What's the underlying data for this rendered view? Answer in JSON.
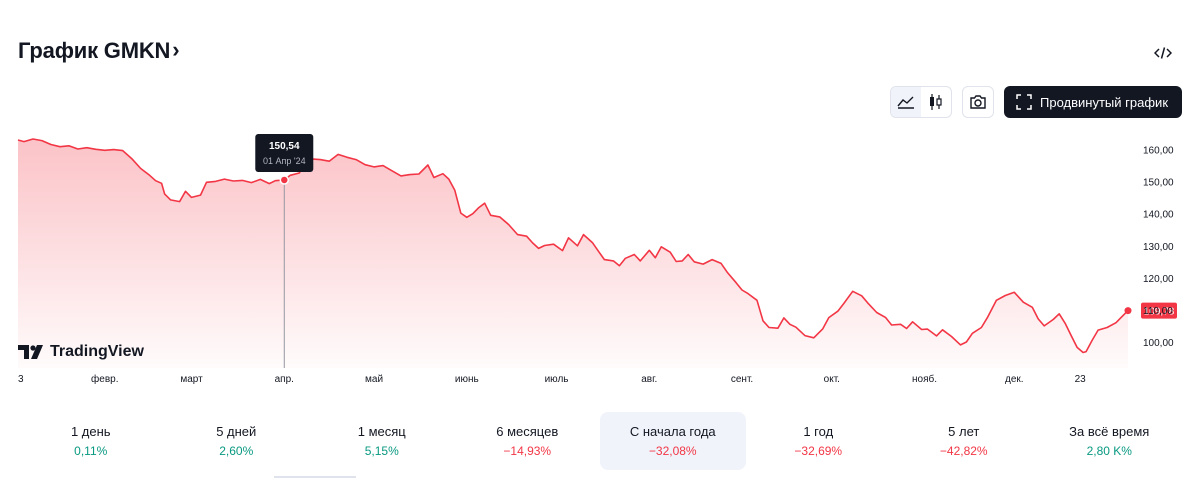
{
  "header": {
    "title": "График GMKN",
    "chevron": "›"
  },
  "toolbar": {
    "advanced_label": "Продвинутый график"
  },
  "logo": {
    "text": "TradingView"
  },
  "tooltip": {
    "value": "150,54",
    "date": "01 Апр '24"
  },
  "last_price_label": "109,78",
  "colors": {
    "line": "#f23645",
    "positive": "#089981",
    "negative": "#f23645",
    "dark": "#131722"
  },
  "chart_data": {
    "type": "area",
    "title": "График GMKN",
    "ylim": [
      95,
      163
    ],
    "yticks": [
      100,
      110,
      120,
      130,
      140,
      150,
      160
    ],
    "y_tick_labels": [
      "100,00",
      "110,00",
      "120,00",
      "130,00",
      "140,00",
      "150,00",
      "160,00"
    ],
    "x_ticks": [
      {
        "label": "3",
        "day": 3
      },
      {
        "label": "февр.",
        "day": 32
      },
      {
        "label": "март",
        "day": 61
      },
      {
        "label": "апр.",
        "day": 92
      },
      {
        "label": "май",
        "day": 122
      },
      {
        "label": "июнь",
        "day": 153
      },
      {
        "label": "июль",
        "day": 183
      },
      {
        "label": "авг.",
        "day": 214
      },
      {
        "label": "сент.",
        "day": 245
      },
      {
        "label": "окт.",
        "day": 275
      },
      {
        "label": "нояб.",
        "day": 306
      },
      {
        "label": "дек.",
        "day": 336
      },
      {
        "label": "23",
        "day": 358
      }
    ],
    "x_range": [
      3,
      362
    ],
    "series": [
      {
        "points": [
          [
            3,
            163.0
          ],
          [
            5,
            162.5
          ],
          [
            8,
            163.3
          ],
          [
            11,
            162.8
          ],
          [
            14,
            161.6
          ],
          [
            17,
            160.9
          ],
          [
            20,
            161.2
          ],
          [
            23,
            160.2
          ],
          [
            26,
            160.6
          ],
          [
            29,
            160.1
          ],
          [
            32,
            159.8
          ],
          [
            35,
            160.0
          ],
          [
            38,
            159.7
          ],
          [
            41,
            157.2
          ],
          [
            44,
            154.1
          ],
          [
            47,
            152.0
          ],
          [
            49,
            150.3
          ],
          [
            51,
            149.5
          ],
          [
            52,
            146.2
          ],
          [
            54,
            144.3
          ],
          [
            57,
            143.8
          ],
          [
            59,
            147.0
          ],
          [
            61,
            145.1
          ],
          [
            64,
            145.8
          ],
          [
            66,
            149.8
          ],
          [
            69,
            150.1
          ],
          [
            72,
            150.8
          ],
          [
            75,
            150.2
          ],
          [
            78,
            150.4
          ],
          [
            81,
            149.7
          ],
          [
            84,
            150.7
          ],
          [
            87,
            149.4
          ],
          [
            89,
            150.3
          ],
          [
            92,
            150.54
          ],
          [
            94,
            152.0
          ],
          [
            97,
            152.7
          ],
          [
            99,
            155.5
          ],
          [
            101,
            157.1
          ],
          [
            104,
            156.9
          ],
          [
            107,
            156.4
          ],
          [
            110,
            158.5
          ],
          [
            113,
            157.6
          ],
          [
            116,
            156.9
          ],
          [
            119,
            155.3
          ],
          [
            122,
            154.6
          ],
          [
            125,
            155.0
          ],
          [
            128,
            153.4
          ],
          [
            131,
            151.8
          ],
          [
            134,
            152.2
          ],
          [
            137,
            152.4
          ],
          [
            140,
            155.2
          ],
          [
            142,
            151.3
          ],
          [
            145,
            152.5
          ],
          [
            147,
            150.8
          ],
          [
            149,
            147.3
          ],
          [
            151,
            140.2
          ],
          [
            153,
            138.9
          ],
          [
            155,
            140.0
          ],
          [
            157,
            141.9
          ],
          [
            159,
            143.3
          ],
          [
            161,
            139.5
          ],
          [
            164,
            139.0
          ],
          [
            167,
            136.6
          ],
          [
            170,
            133.5
          ],
          [
            173,
            133.0
          ],
          [
            175,
            130.9
          ],
          [
            177,
            129.2
          ],
          [
            179,
            130.1
          ],
          [
            182,
            130.5
          ],
          [
            185,
            128.5
          ],
          [
            187,
            132.5
          ],
          [
            190,
            130.0
          ],
          [
            192,
            133.5
          ],
          [
            195,
            131.0
          ],
          [
            197,
            128.3
          ],
          [
            199,
            125.7
          ],
          [
            202,
            125.3
          ],
          [
            204,
            123.8
          ],
          [
            206,
            126.1
          ],
          [
            209,
            127.3
          ],
          [
            211,
            125.3
          ],
          [
            214,
            128.6
          ],
          [
            216,
            126.3
          ],
          [
            218,
            129.7
          ],
          [
            221,
            128.0
          ],
          [
            223,
            125.1
          ],
          [
            225,
            125.3
          ],
          [
            227,
            127.3
          ],
          [
            229,
            125.0
          ],
          [
            232,
            124.3
          ],
          [
            235,
            125.7
          ],
          [
            238,
            124.5
          ],
          [
            240,
            121.8
          ],
          [
            243,
            118.5
          ],
          [
            245,
            116.2
          ],
          [
            247,
            115.1
          ],
          [
            250,
            113.0
          ],
          [
            252,
            106.6
          ],
          [
            254,
            104.5
          ],
          [
            257,
            104.3
          ],
          [
            259,
            107.5
          ],
          [
            261,
            105.5
          ],
          [
            263,
            104.6
          ],
          [
            266,
            102.0
          ],
          [
            269,
            101.3
          ],
          [
            272,
            104.1
          ],
          [
            274,
            107.6
          ],
          [
            277,
            109.6
          ],
          [
            279,
            112.0
          ],
          [
            282,
            115.8
          ],
          [
            285,
            114.4
          ],
          [
            287,
            112.2
          ],
          [
            290,
            109.2
          ],
          [
            293,
            107.6
          ],
          [
            295,
            105.3
          ],
          [
            298,
            105.5
          ],
          [
            300,
            104.2
          ],
          [
            302,
            106.3
          ],
          [
            305,
            103.9
          ],
          [
            307,
            104.0
          ],
          [
            310,
            101.9
          ],
          [
            312,
            103.8
          ],
          [
            315,
            101.7
          ],
          [
            318,
            99.1
          ],
          [
            320,
            100.0
          ],
          [
            322,
            102.7
          ],
          [
            325,
            104.5
          ],
          [
            327,
            107.6
          ],
          [
            330,
            113.0
          ],
          [
            333,
            114.5
          ],
          [
            336,
            115.5
          ],
          [
            339,
            112.4
          ],
          [
            342,
            110.8
          ],
          [
            344,
            107.2
          ],
          [
            346,
            105.0
          ],
          [
            349,
            107.0
          ],
          [
            351,
            108.8
          ],
          [
            353,
            105.8
          ],
          [
            355,
            102.0
          ],
          [
            357,
            98.3
          ],
          [
            359,
            96.7
          ],
          [
            360,
            97.0
          ],
          [
            362,
            100.5
          ],
          [
            364,
            103.7
          ],
          [
            367,
            104.5
          ],
          [
            370,
            106.0
          ],
          [
            372,
            107.9
          ],
          [
            374,
            109.78
          ]
        ]
      }
    ],
    "highlight": {
      "day": 92,
      "value": 150.54
    },
    "last_value": 109.78
  },
  "periods": [
    {
      "label": "1 день",
      "change": "0,11%",
      "dir": "pos"
    },
    {
      "label": "5 дней",
      "change": "2,60%",
      "dir": "pos"
    },
    {
      "label": "1 месяц",
      "change": "5,15%",
      "dir": "pos"
    },
    {
      "label": "6 месяцев",
      "change": "−14,93%",
      "dir": "neg"
    },
    {
      "label": "С начала года",
      "change": "−32,08%",
      "dir": "neg",
      "active": true
    },
    {
      "label": "1 год",
      "change": "−32,69%",
      "dir": "neg"
    },
    {
      "label": "5 лет",
      "change": "−42,82%",
      "dir": "neg"
    },
    {
      "label": "За всё время",
      "change": "2,80 K%",
      "dir": "pos"
    }
  ]
}
